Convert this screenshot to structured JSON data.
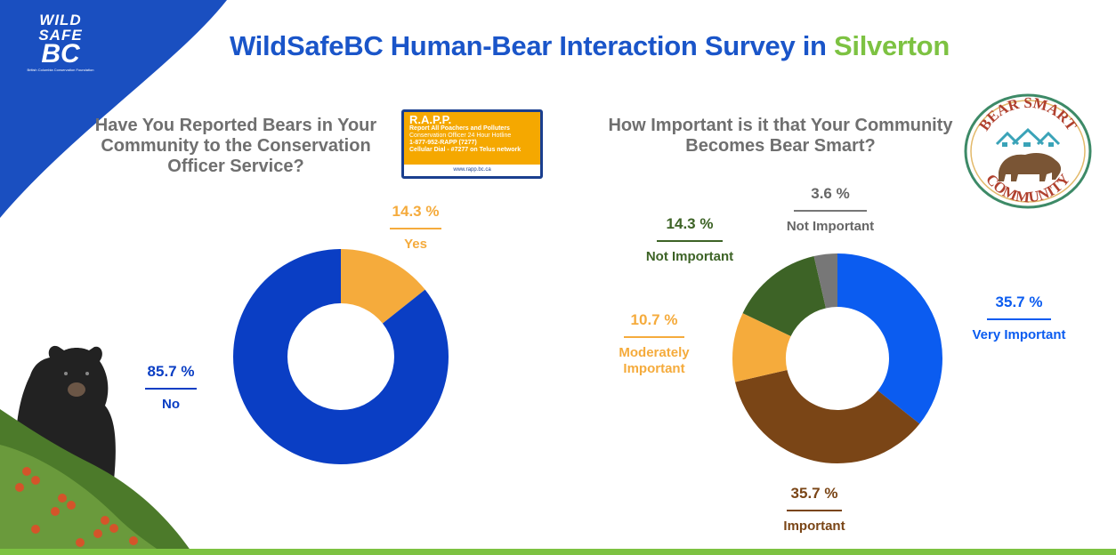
{
  "header": {
    "title_main": "WildSafeBC Human-Bear Interaction Survey in ",
    "title_highlight": "Silverton",
    "logo_line1": "WILD",
    "logo_line2": "SAFE",
    "logo_line3": "BC",
    "logo_subtext": "British Columbia Conservation Foundation"
  },
  "rapp_sign": {
    "title": "R.A.P.P.",
    "line1": "Report All Poachers and Polluters",
    "line2": "Conservation Officer 24 Hour Hotline",
    "line3": "1-877-952-RAPP (7277)",
    "line4": "Cellular Dial - #7277 on Telus network",
    "url": "www.rapp.bc.ca"
  },
  "badge": {
    "top_text": "BEAR SMART",
    "bottom_text": "COMMUNITY"
  },
  "colors": {
    "blue_dark": "#0a3ec4",
    "blue_bright": "#0b5cf0",
    "orange": "#f5ab3c",
    "brown": "#7a4516",
    "green_dark": "#3d6326",
    "gray": "#777777",
    "accent_green": "#7dc242",
    "title_blue": "#1a55c9"
  },
  "chart_data": [
    {
      "type": "pie",
      "donut": true,
      "title": "Have You Reported Bears in Your Community to the Conservation Officer Service?",
      "labels": [
        "Yes",
        "No"
      ],
      "values": [
        14.3,
        85.7
      ],
      "value_labels": [
        "14.3 %",
        "85.7 %"
      ],
      "colors": [
        "#f5ab3c",
        "#0a3ec4"
      ]
    },
    {
      "type": "pie",
      "donut": true,
      "title": "How Important is it that Your Community Becomes Bear Smart?",
      "labels": [
        "Very Important",
        "Important",
        "Moderately Important",
        "Not Important",
        "Not Important"
      ],
      "values": [
        35.7,
        35.7,
        10.7,
        14.3,
        3.6
      ],
      "value_labels": [
        "35.7 %",
        "35.7 %",
        "10.7 %",
        "14.3 %",
        "3.6 %"
      ],
      "colors": [
        "#0b5cf0",
        "#7a4516",
        "#f5ab3c",
        "#3d6326",
        "#777777"
      ]
    }
  ]
}
